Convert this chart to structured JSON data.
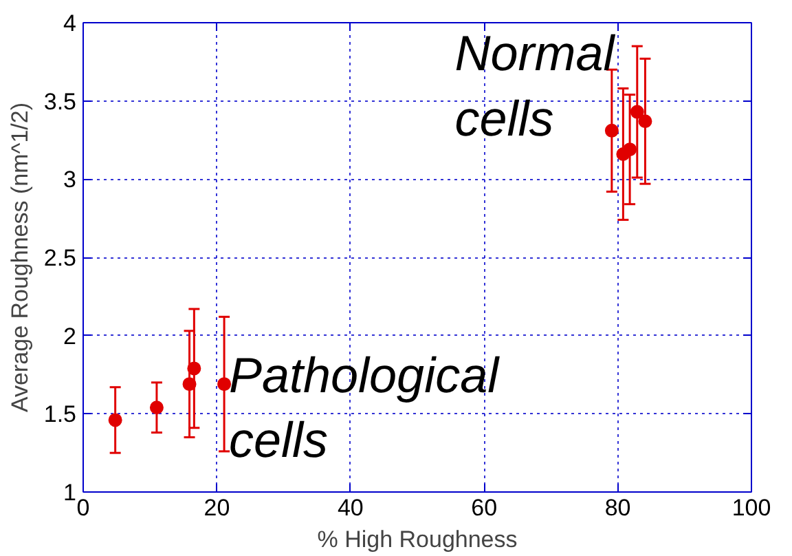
{
  "chart_data": {
    "type": "scatter",
    "xlabel": "% High Roughness",
    "ylabel": "Average Roughness (nm^1/2)",
    "x": [
      4.8,
      11,
      15.9,
      16.6,
      21.1,
      79.1,
      80.8,
      81.8,
      82.9,
      84.1
    ],
    "series": [
      {
        "color": "#e00000",
        "values": [
          1.46,
          1.54,
          1.69,
          1.79,
          1.69,
          3.31,
          3.16,
          3.19,
          3.43,
          3.37
        ],
        "errors": [
          0.21,
          0.16,
          0.34,
          0.38,
          0.43,
          0.39,
          0.42,
          0.35,
          0.42,
          0.4
        ]
      }
    ],
    "xlim": [
      0,
      100
    ],
    "xticks": [
      0,
      20,
      40,
      60,
      80,
      100
    ],
    "ylim": [
      1,
      4
    ],
    "yticks": [
      1,
      1.5,
      2,
      2.5,
      3,
      3.5,
      4
    ],
    "grid": true,
    "marker": "circle",
    "annotations": [
      "Normal\ncells",
      "Pathological\ncells"
    ]
  }
}
